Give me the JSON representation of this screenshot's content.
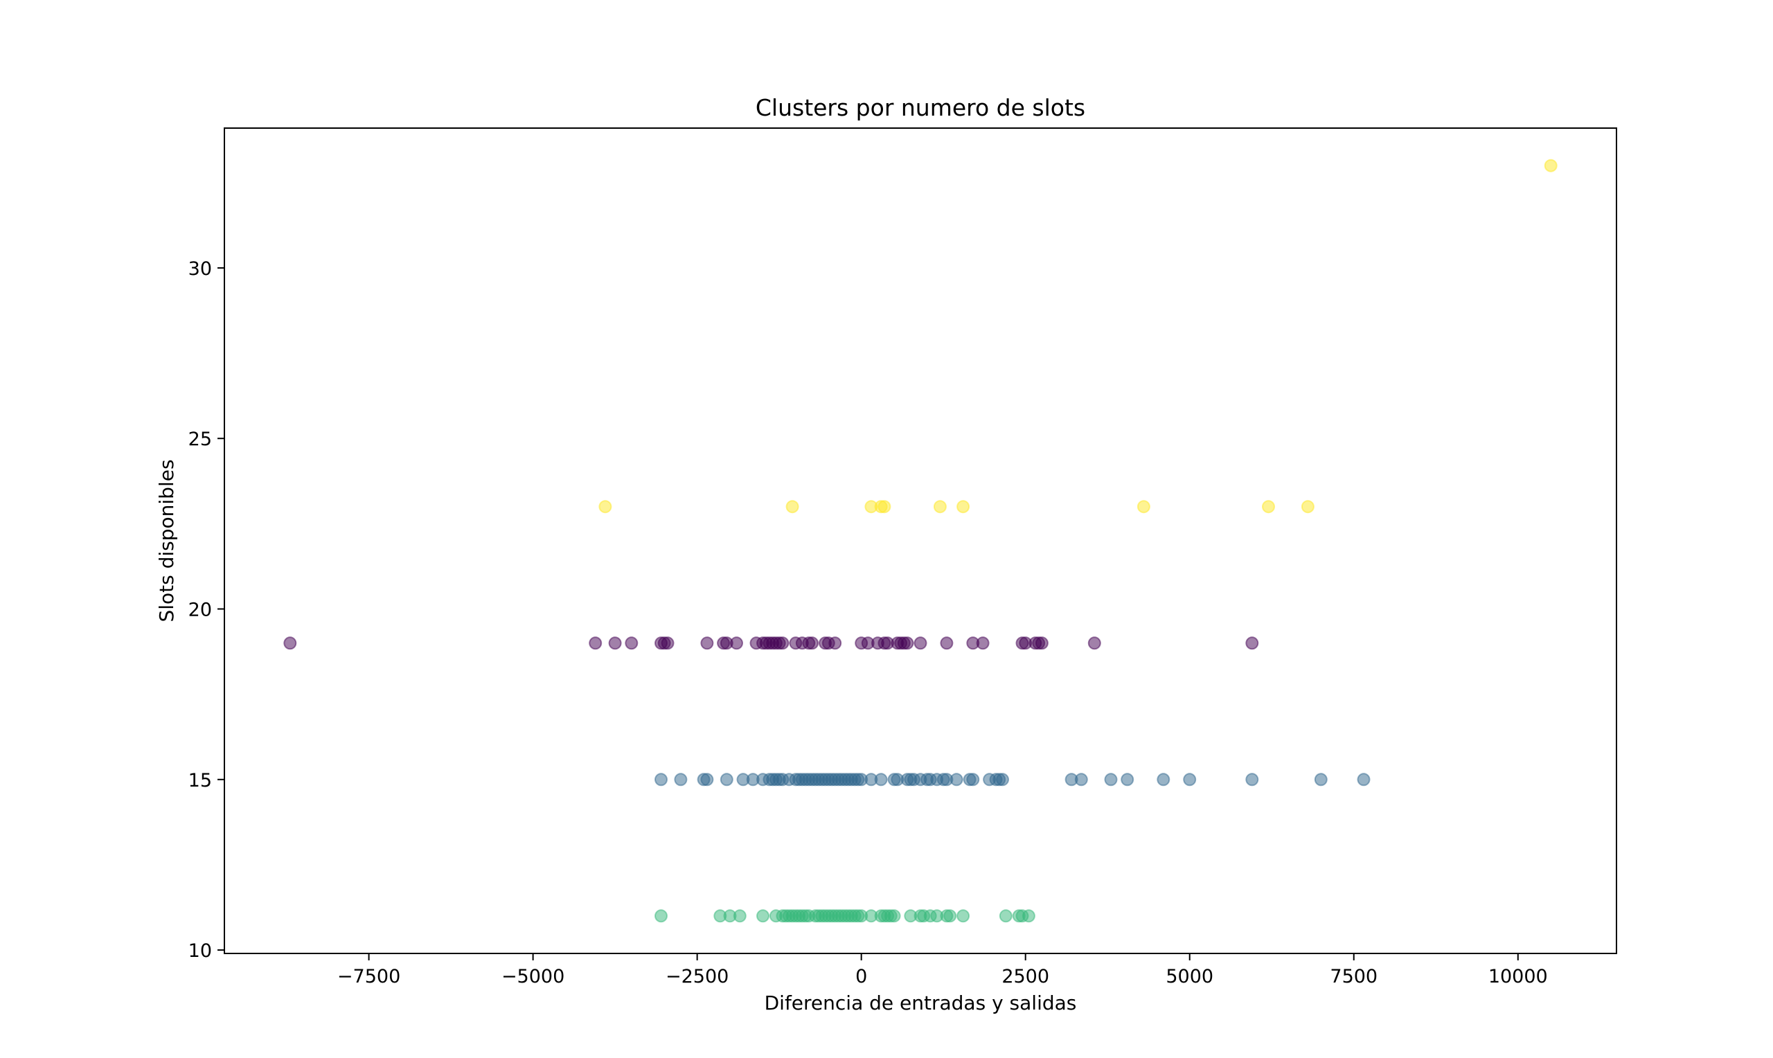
{
  "chart_data": {
    "type": "scatter",
    "title": "Clusters por numero de slots",
    "xlabel": "Diferencia de entradas y salidas",
    "ylabel": "Slots disponibles",
    "xlim": [
      -9700,
      11500
    ],
    "ylim": [
      9.9,
      34.1
    ],
    "x_ticks": [
      -7500,
      -5000,
      -2500,
      0,
      2500,
      5000,
      7500,
      10000
    ],
    "x_tick_labels": [
      "−7500",
      "−5000",
      "−2500",
      "0",
      "2500",
      "5000",
      "7500",
      "10000"
    ],
    "y_ticks": [
      10,
      15,
      20,
      25,
      30
    ],
    "y_tick_labels": [
      "10",
      "15",
      "20",
      "25",
      "30"
    ],
    "grid": false,
    "marker_alpha": 0.5,
    "series": [
      {
        "color": "#440154",
        "y": 19,
        "x": [
          -8700,
          -4050,
          -3750,
          -3500,
          -3050,
          -3000,
          -2950,
          -2350,
          -2100,
          -2050,
          -1900,
          -1600,
          -1500,
          -1450,
          -1400,
          -1350,
          -1300,
          -1250,
          -1200,
          -1000,
          -900,
          -800,
          -750,
          -550,
          -500,
          -400,
          0,
          100,
          250,
          350,
          400,
          550,
          600,
          650,
          700,
          900,
          1300,
          1700,
          1850,
          2450,
          2500,
          2650,
          2700,
          2750,
          3550,
          5950
        ]
      },
      {
        "color": "#31688e",
        "y": 15,
        "x": [
          -3050,
          -2750,
          -2400,
          -2350,
          -2050,
          -1800,
          -1650,
          -1500,
          -1400,
          -1350,
          -1300,
          -1250,
          -1200,
          -1100,
          -1000,
          -950,
          -900,
          -850,
          -800,
          -750,
          -700,
          -650,
          -600,
          -550,
          -500,
          -450,
          -400,
          -350,
          -300,
          -250,
          -200,
          -150,
          -100,
          -50,
          0,
          150,
          300,
          500,
          550,
          700,
          750,
          800,
          900,
          1000,
          1050,
          1150,
          1250,
          1300,
          1450,
          1650,
          1700,
          1950,
          2050,
          2100,
          2150,
          3200,
          3350,
          3800,
          4050,
          4600,
          5000,
          5950,
          7000,
          7650
        ]
      },
      {
        "color": "#35b779",
        "y": 11,
        "x": [
          -3050,
          -2150,
          -2000,
          -1850,
          -1500,
          -1300,
          -1200,
          -1150,
          -1100,
          -1050,
          -1000,
          -950,
          -900,
          -850,
          -800,
          -700,
          -650,
          -600,
          -550,
          -500,
          -450,
          -400,
          -350,
          -300,
          -250,
          -200,
          -150,
          -100,
          -50,
          0,
          150,
          300,
          350,
          400,
          450,
          500,
          750,
          900,
          950,
          1050,
          1150,
          1300,
          1350,
          1550,
          2200,
          2400,
          2450,
          2550
        ]
      },
      {
        "color": "#fde725",
        "y": 23,
        "x": [
          -3900,
          -1050,
          150,
          300,
          350,
          1200,
          1550,
          4300,
          6200,
          6800
        ]
      },
      {
        "color": "#fde725",
        "y": 33,
        "x": [
          10500
        ]
      }
    ]
  }
}
